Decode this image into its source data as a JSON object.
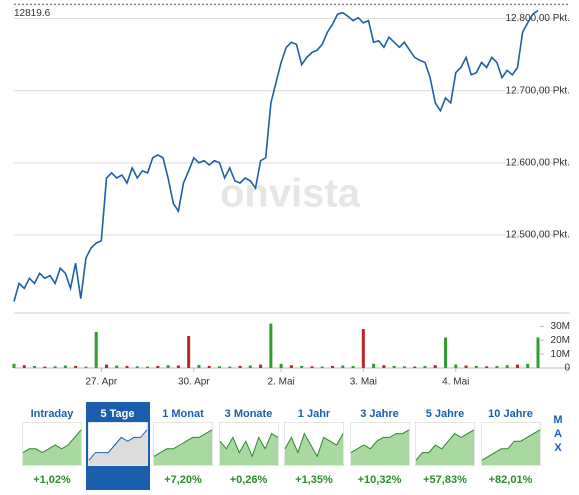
{
  "chart_data": {
    "type": "line",
    "values": [
      12408,
      12433,
      12426,
      12440,
      12433,
      12447,
      12440,
      12444,
      12433,
      12454,
      12447,
      12426,
      12461,
      12412,
      12468,
      12482,
      12489,
      12492,
      12579,
      12586,
      12579,
      12583,
      12572,
      12593,
      12579,
      12589,
      12586,
      12607,
      12611,
      12607,
      12579,
      12544,
      12533,
      12572,
      12589,
      12607,
      12600,
      12603,
      12597,
      12603,
      12600,
      12579,
      12593,
      12575,
      12572,
      12579,
      12575,
      12565,
      12603,
      12607,
      12683,
      12711,
      12739,
      12760,
      12767,
      12764,
      12736,
      12746,
      12753,
      12756,
      12764,
      12781,
      12792,
      12806,
      12808,
      12803,
      12797,
      12801,
      12794,
      12797,
      12767,
      12769,
      12760,
      12774,
      12767,
      12760,
      12767,
      12756,
      12746,
      12742,
      12739,
      12718,
      12683,
      12672,
      12690,
      12683,
      12725,
      12732,
      12746,
      12722,
      12725,
      12739,
      12732,
      12746,
      12739,
      12718,
      12728,
      12722,
      12732,
      12781,
      12794,
      12806,
      12811
    ],
    "color": "#1f5fa8",
    "xlim": [
      0,
      102
    ],
    "xticks": [
      {
        "value": 17,
        "label": "27. Apr"
      },
      {
        "value": 35,
        "label": "30. Apr"
      },
      {
        "value": 52,
        "label": "2. Mai"
      },
      {
        "value": 68,
        "label": "3. Mai"
      },
      {
        "value": 86,
        "label": "4. Mai"
      }
    ],
    "ylim": [
      12410,
      12820
    ],
    "yticks": [
      {
        "value": 12500,
        "label": "12.500,00 Pkt."
      },
      {
        "value": 12600,
        "label": "12.600,00 Pkt."
      },
      {
        "value": 12700,
        "label": "12.700,00 Pkt."
      },
      {
        "value": 12800,
        "label": "12.800,00 Pkt."
      }
    ],
    "grid": true,
    "last_price": 12819.6,
    "watermark": "onvista",
    "volume": {
      "type": "bar",
      "values": [
        3000000,
        2000000,
        1500000,
        1000000,
        1200000,
        1800000,
        1500000,
        1000000,
        26000000,
        2500000,
        1800000,
        1500000,
        1200000,
        1000000,
        1500000,
        2000000,
        1800000,
        23000000,
        2200000,
        1500000,
        1200000,
        1000000,
        1500000,
        1800000,
        2500000,
        32000000,
        3000000,
        2000000,
        1500000,
        1200000,
        1000000,
        1500000,
        1800000,
        1500000,
        28000000,
        3000000,
        2000000,
        1500000,
        1200000,
        1000000,
        1500000,
        2000000,
        22000000,
        2500000,
        1800000,
        1500000,
        1200000,
        1500000,
        2000000,
        2500000,
        3000000,
        22000000
      ],
      "colors": [
        "#2e9e2e",
        "#b8262b",
        "#2e9e2e",
        "#b8262b",
        "#2e9e2e",
        "#2e9e2e",
        "#b8262b",
        "#2e9e2e",
        "#2e9e2e",
        "#b8262b",
        "#2e9e2e",
        "#b8262b",
        "#2e9e2e",
        "#2e9e2e",
        "#b8262b",
        "#2e9e2e",
        "#b8262b",
        "#b8262b",
        "#2e9e2e",
        "#b8262b",
        "#2e9e2e",
        "#2e9e2e",
        "#b8262b",
        "#2e9e2e",
        "#b8262b",
        "#2e9e2e",
        "#2e9e2e",
        "#b8262b",
        "#2e9e2e",
        "#b8262b",
        "#2e9e2e",
        "#b8262b",
        "#2e9e2e",
        "#2e9e2e",
        "#b8262b",
        "#2e9e2e",
        "#b8262b",
        "#2e9e2e",
        "#2e9e2e",
        "#b8262b",
        "#2e9e2e",
        "#b8262b",
        "#2e9e2e",
        "#2e9e2e",
        "#b8262b",
        "#2e9e2e",
        "#b8262b",
        "#2e9e2e",
        "#2e9e2e",
        "#b8262b",
        "#2e9e2e",
        "#2e9e2e"
      ],
      "ylim": [
        0,
        36000000
      ],
      "yticks": [
        0,
        {
          "value": 10000000,
          "label": "10M"
        },
        {
          "value": 20000000,
          "label": "20M"
        },
        {
          "value": 30000000,
          "label": "30M"
        }
      ]
    }
  },
  "periods": [
    {
      "label": "Intraday",
      "change": "+1,02%",
      "spark": [
        3,
        4,
        4,
        3,
        4,
        5,
        4,
        5,
        7,
        9
      ]
    },
    {
      "label": "5 Tage",
      "change": "",
      "spark": [
        1,
        3,
        3,
        3,
        5,
        7,
        6,
        7,
        7,
        9
      ]
    },
    {
      "label": "1 Monat",
      "change": "+7,20%",
      "spark": [
        2,
        3,
        4,
        4,
        5,
        6,
        7,
        7,
        8,
        9
      ]
    },
    {
      "label": "3 Monate",
      "change": "+0,26%",
      "spark": [
        6,
        4,
        7,
        3,
        6,
        2,
        7,
        4,
        8,
        7
      ]
    },
    {
      "label": "1 Jahr",
      "change": "+1,35%",
      "spark": [
        4,
        7,
        3,
        8,
        5,
        2,
        7,
        6,
        5,
        8
      ]
    },
    {
      "label": "3 Jahre",
      "change": "+10,32%",
      "spark": [
        3,
        4,
        5,
        4,
        6,
        7,
        7,
        8,
        8,
        9
      ]
    },
    {
      "label": "5 Jahre",
      "change": "+57,83%",
      "spark": [
        1,
        3,
        3,
        5,
        4,
        6,
        8,
        7,
        8,
        9
      ]
    },
    {
      "label": "10 Jahre",
      "change": "+82,01%",
      "spark": [
        1,
        2,
        3,
        4,
        4,
        6,
        6,
        7,
        8,
        9
      ]
    }
  ],
  "selected_period": 1,
  "spark_ylim": [
    0,
    10
  ],
  "max_label": "MAX"
}
